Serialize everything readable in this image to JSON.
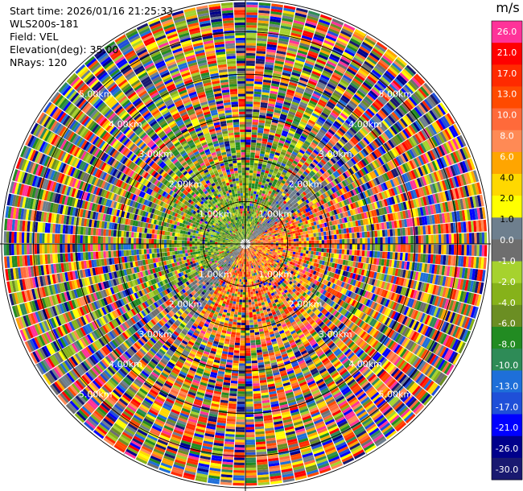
{
  "header": {
    "start_time": "Start time: 2026/01/16 21:25:33",
    "instrument": "WLS200s-181",
    "field": "Field: VEL",
    "elevation": "Elevation(deg): 35.00",
    "nrays": "NRays: 120"
  },
  "colorbar": {
    "units": "m/s",
    "labels": [
      "26.0",
      "21.0",
      "17.0",
      "13.0",
      "10.0",
      "8.0",
      "6.0",
      "4.0",
      "2.0",
      "1.0",
      "0.0",
      "-1.0",
      "-2.0",
      "-4.0",
      "-6.0",
      "-8.0",
      "-10.0",
      "-13.0",
      "-17.0",
      "-21.0",
      "-26.0",
      "-30.0"
    ],
    "colors": [
      "#ff3399",
      "#ff0000",
      "#ff2a00",
      "#ff4a00",
      "#ff6a3a",
      "#ff8a55",
      "#ffa500",
      "#ffd800",
      "#ffff00",
      "#6e7f8e",
      "#6e6e6e",
      "#a6d22e",
      "#86b21a",
      "#6b8e23",
      "#228b22",
      "#2e8b57",
      "#1e6fd9",
      "#1f4fd8",
      "#0000ff",
      "#00008b",
      "#191970"
    ]
  },
  "chart_data": {
    "type": "heatmap",
    "projection": "polar (PPI scan)",
    "nrays": 120,
    "range_rings_km": [
      1.0,
      2.0,
      3.0,
      4.0,
      5.0
    ],
    "range_ring_labels": [
      "1.00km",
      "2.00km",
      "3.00km",
      "4.00km",
      "5.00km"
    ],
    "max_range_km": 5.75,
    "value_range": [
      -30.0,
      26.0
    ],
    "units": "m/s",
    "description_of_pattern": "near range: green/blue (negative) toward upper-left, orange/red (positive) toward lower-right; far range: noisy mixture of all colours"
  }
}
